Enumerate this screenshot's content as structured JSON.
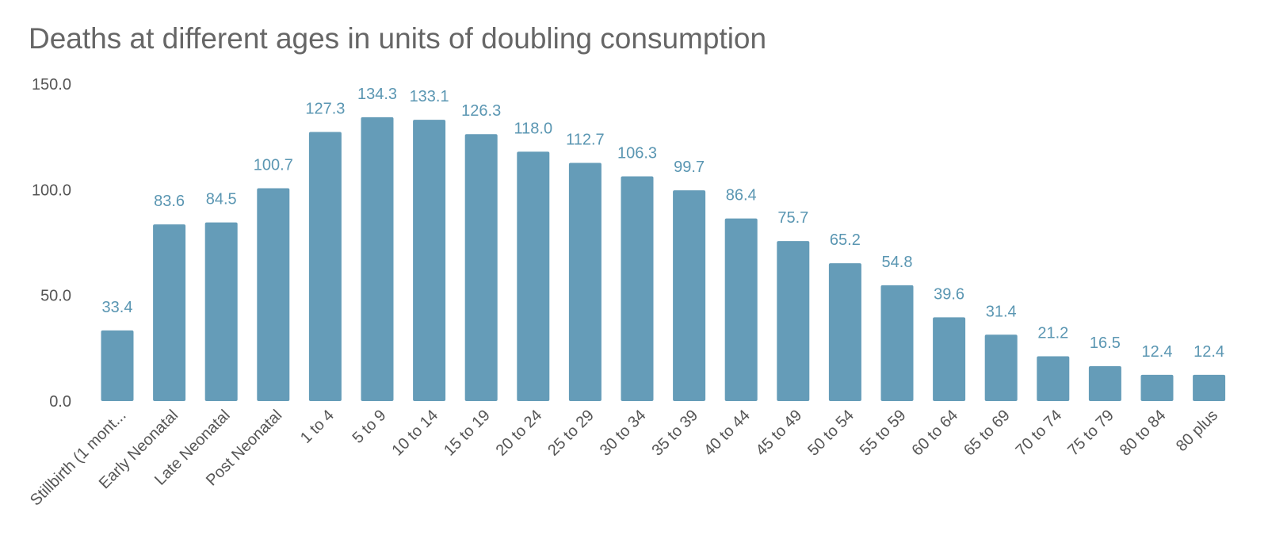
{
  "title": "Deaths at different ages in units of doubling consumption",
  "chart_data": {
    "type": "bar",
    "title": "Deaths at different ages in units of doubling consumption",
    "xlabel": "",
    "ylabel": "",
    "ylim": [
      0,
      150
    ],
    "yticks": [
      "0.0",
      "50.0",
      "100.0",
      "150.0"
    ],
    "grid": false,
    "bar_color": "#659CB8",
    "label_color": "#5A96B2",
    "categories": [
      "Stillbirth (1 mont...",
      "Early Neonatal",
      "Late Neonatal",
      "Post Neonatal",
      "1 to 4",
      "5 to 9",
      "10 to 14",
      "15 to 19",
      "20 to 24",
      "25 to 29",
      "30 to 34",
      "35 to 39",
      "40 to 44",
      "45 to 49",
      "50 to 54",
      "55 to 59",
      "60 to 64",
      "65 to 69",
      "70 to 74",
      "75 to 79",
      "80 to 84",
      "80 plus"
    ],
    "values": [
      33.4,
      83.6,
      84.5,
      100.7,
      127.3,
      134.3,
      133.1,
      126.3,
      118.0,
      112.7,
      106.3,
      99.7,
      86.4,
      75.7,
      65.2,
      54.8,
      39.6,
      31.4,
      21.2,
      16.5,
      12.4,
      12.4
    ],
    "data_labels": [
      "33.4",
      "83.6",
      "84.5",
      "100.7",
      "127.3",
      "134.3",
      "133.1",
      "126.3",
      "118.0",
      "112.7",
      "106.3",
      "99.7",
      "86.4",
      "75.7",
      "65.2",
      "54.8",
      "39.6",
      "31.4",
      "21.2",
      "16.5",
      "12.4",
      "12.4"
    ]
  }
}
